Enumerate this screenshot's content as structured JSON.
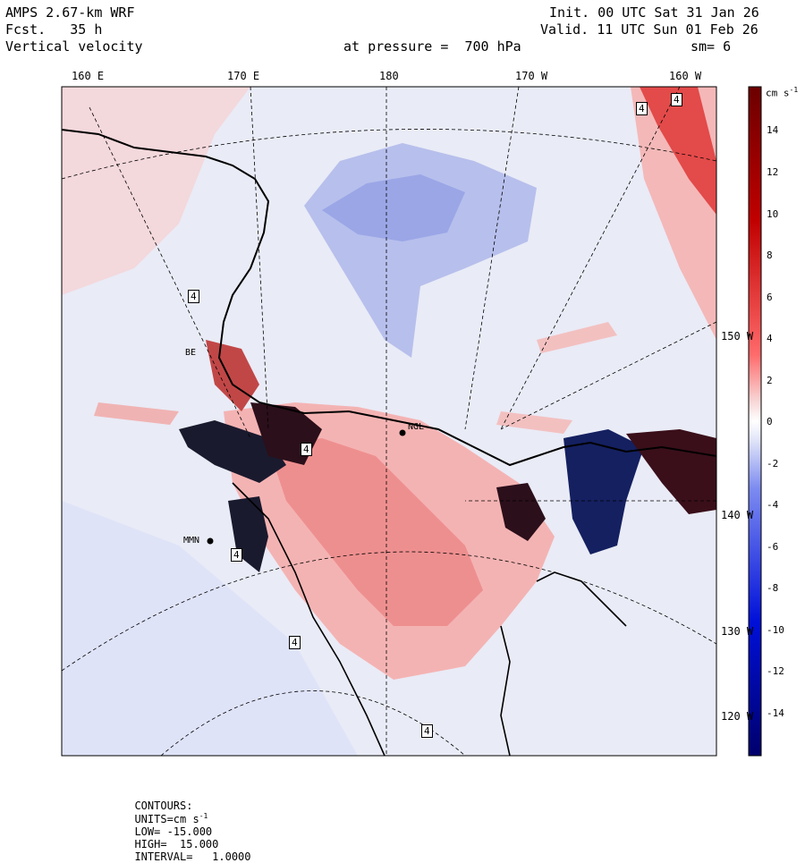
{
  "header": {
    "model": "AMPS 2.67-km WRF",
    "forecast": "Fcst.   35 h",
    "field": "Vertical velocity",
    "init": "Init. 00 UTC Sat 31 Jan 26",
    "valid": "Valid. 11 UTC Sun 01 Feb 26",
    "level": "at pressure =  700 hPa",
    "smoothing": "sm= 6"
  },
  "map": {
    "longitude_labels": [
      "160 E",
      "170 E",
      "180",
      "170 W",
      "160 W"
    ],
    "latitude_labels": [
      "150 W",
      "140 W",
      "130 W",
      "120 W"
    ],
    "station_labels": [
      "NGL",
      "MMN",
      "BE"
    ],
    "contour_labels": [
      "4",
      "4",
      "4",
      "4",
      "4",
      "4",
      "4"
    ],
    "colors": {
      "positive_max": "#8b0000",
      "positive_mid": "#e03c3c",
      "positive_low": "#f6c4c4",
      "near_zero": "#e9ebf6",
      "negative_low": "#b7bfec",
      "negative_mid": "#3a4fe0",
      "negative_max": "#00008b"
    }
  },
  "colorbar": {
    "units_label": "cm s",
    "units_exponent": "-1",
    "tick_labels": [
      "14",
      "12",
      "10",
      "8",
      "6",
      "4",
      "2",
      "0",
      "-2",
      "-4",
      "-6",
      "-8",
      "-10",
      "-12",
      "-14"
    ]
  },
  "footer": {
    "contours_label": "CONTOURS:",
    "units_label": "UNITS=cm s",
    "units_exponent": "-1",
    "low_label": "LOW= -15.000",
    "high_label": "HIGH=  15.000",
    "interval_label": "INTERVAL=   1.0000"
  }
}
